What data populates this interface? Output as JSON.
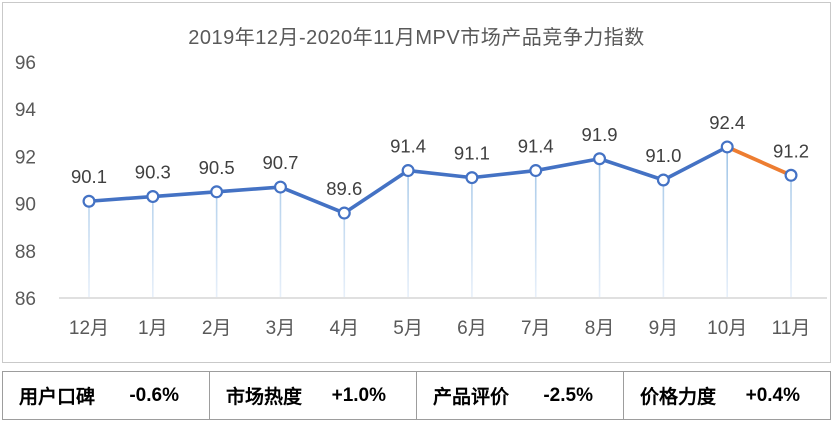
{
  "title": "2019年12月-2020年11月MPV市场产品竞争力指数",
  "chart_data": {
    "type": "line",
    "title": "2019年12月-2020年11月MPV市场产品竞争力指数",
    "categories": [
      "12月",
      "1月",
      "2月",
      "3月",
      "4月",
      "5月",
      "6月",
      "7月",
      "8月",
      "9月",
      "10月",
      "11月"
    ],
    "values": [
      90.1,
      90.3,
      90.5,
      90.7,
      89.6,
      91.4,
      91.1,
      91.4,
      91.9,
      91.0,
      92.4,
      91.2
    ],
    "yticks": [
      86,
      88,
      90,
      92,
      94,
      96
    ],
    "ylim": [
      86,
      96
    ],
    "xlabel": "",
    "ylabel": "",
    "grid": false,
    "legend_position": "none",
    "data_labels_shown": true,
    "highlight_last_segment": true,
    "colors": {
      "line": "#4472C4",
      "last_segment": "#ED7D31",
      "marker_fill": "#FFFFFF",
      "marker_stroke": "#4472C4",
      "drop_line_top": "#9DC3E6",
      "drop_line_bottom": "#E8F0FA",
      "axis_line": "#D6D6D6",
      "tick_text": "#595959",
      "data_label_text": "#404040",
      "title_text": "#595959"
    }
  },
  "metrics": [
    {
      "label": "用户口碑",
      "value": "-0.6%"
    },
    {
      "label": "市场热度",
      "value": "+1.0%"
    },
    {
      "label": "产品评价",
      "value": "-2.5%"
    },
    {
      "label": "价格力度",
      "value": "+0.4%"
    }
  ]
}
